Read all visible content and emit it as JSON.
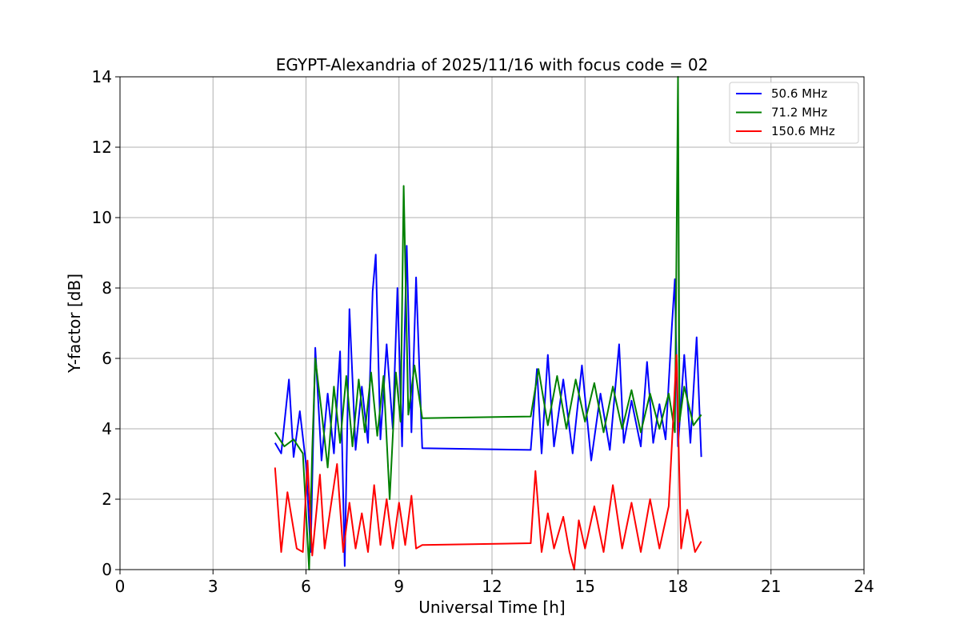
{
  "chart_data": {
    "type": "line",
    "title": "EGYPT-Alexandria of 2025/11/16 with focus code = 02",
    "xlabel": "Universal Time [h]",
    "ylabel": "Y-factor [dB]",
    "xlim": [
      0,
      24
    ],
    "ylim": [
      0,
      14
    ],
    "xticks": [
      0,
      3,
      6,
      9,
      12,
      15,
      18,
      21,
      24
    ],
    "yticks": [
      0,
      2,
      4,
      6,
      8,
      10,
      12,
      14
    ],
    "grid": true,
    "legend_position": "top-right",
    "series": [
      {
        "name": "50.6 MHz",
        "color": "#0000ff",
        "x": [
          5.0,
          5.2,
          5.45,
          5.6,
          5.8,
          6.0,
          6.15,
          6.3,
          6.5,
          6.7,
          6.9,
          7.1,
          7.25,
          7.4,
          7.6,
          7.8,
          8.0,
          8.15,
          8.25,
          8.4,
          8.6,
          8.8,
          8.95,
          9.1,
          9.25,
          9.4,
          9.55,
          9.75,
          13.25,
          13.45,
          13.6,
          13.8,
          14.0,
          14.3,
          14.6,
          14.9,
          15.2,
          15.5,
          15.8,
          16.1,
          16.25,
          16.5,
          16.8,
          17.0,
          17.2,
          17.4,
          17.6,
          17.8,
          17.9,
          18.0,
          18.2,
          18.4,
          18.6,
          18.75
        ],
        "values": [
          3.6,
          3.3,
          5.4,
          3.2,
          4.5,
          3.0,
          0.5,
          6.3,
          3.1,
          5.0,
          3.3,
          6.2,
          0.1,
          7.4,
          3.4,
          5.2,
          3.6,
          7.9,
          8.95,
          3.7,
          6.4,
          4.0,
          8.0,
          3.5,
          9.2,
          3.9,
          8.3,
          3.45,
          3.4,
          5.7,
          3.3,
          6.1,
          3.5,
          5.4,
          3.3,
          5.8,
          3.1,
          5.0,
          3.4,
          6.4,
          3.6,
          4.8,
          3.5,
          5.9,
          3.6,
          4.7,
          3.7,
          6.9,
          8.25,
          3.5,
          6.1,
          3.6,
          6.6,
          3.2
        ]
      },
      {
        "name": "71.2 MHz",
        "color": "#008000",
        "x": [
          5.0,
          5.3,
          5.6,
          5.9,
          6.1,
          6.2,
          6.3,
          6.5,
          6.7,
          6.9,
          7.1,
          7.3,
          7.5,
          7.7,
          7.9,
          8.1,
          8.3,
          8.5,
          8.7,
          8.9,
          9.05,
          9.15,
          9.3,
          9.5,
          9.75,
          13.25,
          13.5,
          13.8,
          14.1,
          14.4,
          14.7,
          15.0,
          15.3,
          15.6,
          15.9,
          16.2,
          16.5,
          16.8,
          17.1,
          17.4,
          17.7,
          17.9,
          18.0,
          18.05,
          18.2,
          18.5,
          18.75
        ],
        "values": [
          3.9,
          3.5,
          3.7,
          3.3,
          0.0,
          3.4,
          6.0,
          4.5,
          2.9,
          5.2,
          3.6,
          5.5,
          3.5,
          5.4,
          3.9,
          5.6,
          3.8,
          5.5,
          2.0,
          5.6,
          4.2,
          10.9,
          4.4,
          5.8,
          4.3,
          4.35,
          5.7,
          4.1,
          5.5,
          4.0,
          5.4,
          4.2,
          5.3,
          3.9,
          5.2,
          4.0,
          5.1,
          3.9,
          5.0,
          4.0,
          5.0,
          3.9,
          14.0,
          4.2,
          5.2,
          4.1,
          4.4
        ]
      },
      {
        "name": "150.6 MHz",
        "color": "#ff0000",
        "x": [
          5.0,
          5.2,
          5.4,
          5.7,
          5.9,
          6.05,
          6.2,
          6.45,
          6.6,
          6.8,
          7.0,
          7.2,
          7.4,
          7.6,
          7.8,
          8.0,
          8.2,
          8.4,
          8.6,
          8.8,
          9.0,
          9.2,
          9.4,
          9.55,
          9.75,
          13.25,
          13.4,
          13.6,
          13.8,
          14.0,
          14.3,
          14.5,
          14.65,
          14.8,
          15.0,
          15.3,
          15.6,
          15.9,
          16.2,
          16.5,
          16.8,
          17.1,
          17.4,
          17.7,
          17.95,
          18.1,
          18.3,
          18.55,
          18.75
        ],
        "values": [
          2.9,
          0.5,
          2.2,
          0.6,
          0.5,
          3.1,
          0.4,
          2.7,
          0.6,
          1.8,
          3.0,
          0.5,
          1.9,
          0.6,
          1.6,
          0.5,
          2.4,
          0.7,
          2.0,
          0.6,
          1.9,
          0.7,
          2.1,
          0.6,
          0.7,
          0.75,
          2.8,
          0.5,
          1.6,
          0.6,
          1.5,
          0.5,
          0.0,
          1.4,
          0.6,
          1.8,
          0.5,
          2.4,
          0.6,
          1.9,
          0.5,
          2.0,
          0.6,
          1.8,
          6.1,
          0.6,
          1.7,
          0.5,
          0.8
        ]
      }
    ]
  }
}
